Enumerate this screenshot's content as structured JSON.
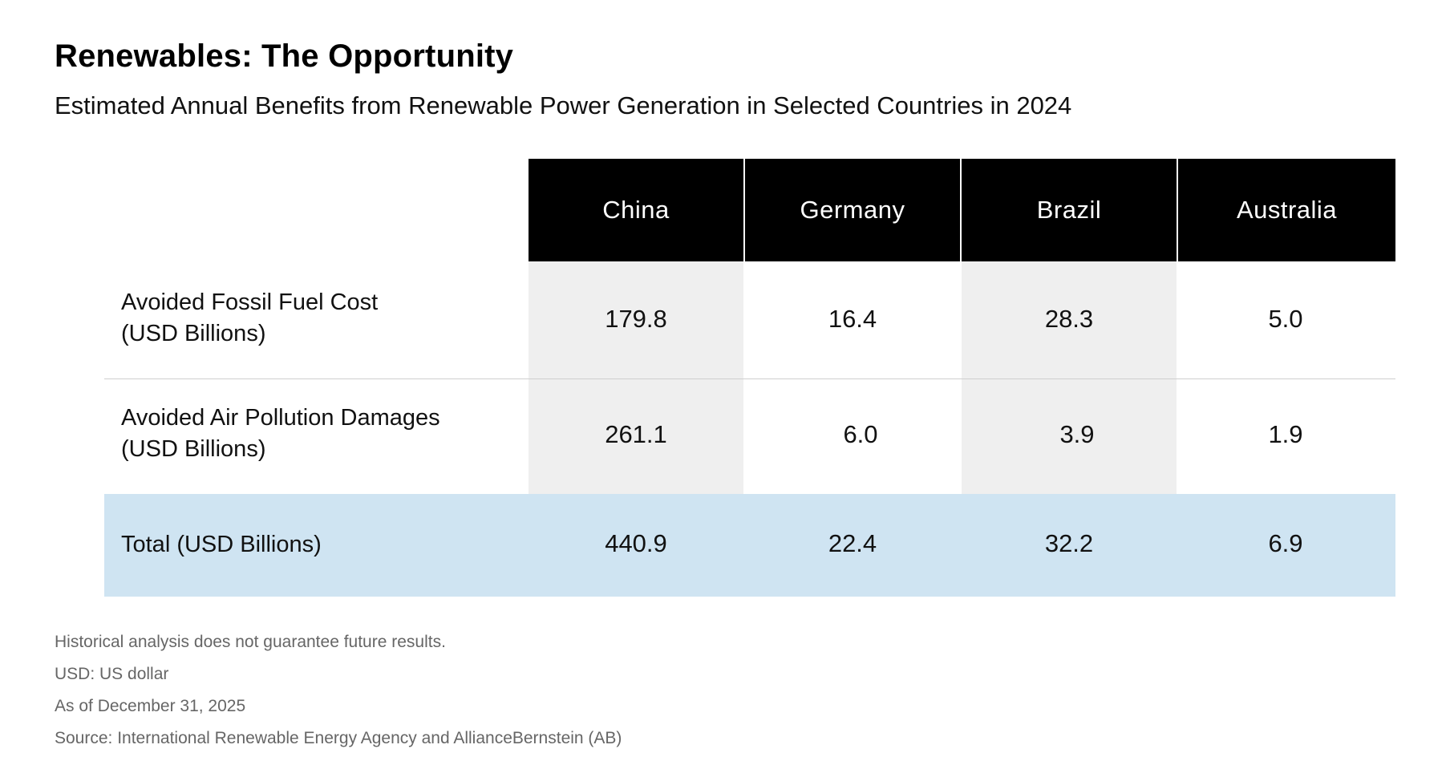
{
  "title": "Renewables: The Opportunity",
  "subtitle": "Estimated Annual Benefits from Renewable Power Generation in Selected Countries in 2024",
  "colors": {
    "header_bg": "#000000",
    "header_text": "#ffffff",
    "shaded_column": "#efefef",
    "total_row": "#cfe4f2",
    "notes_text": "#666666"
  },
  "chart_data": {
    "type": "table",
    "title": "Renewables: The Opportunity",
    "subtitle": "Estimated Annual Benefits from Renewable Power Generation in Selected Countries in 2024",
    "columns": [
      "China",
      "Germany",
      "Brazil",
      "Australia"
    ],
    "rows": [
      {
        "label_line1": "Avoided Fossil Fuel Cost",
        "label_line2": "(USD Billions)",
        "values": [
          "179.8",
          "16.4",
          "28.3",
          "5.0"
        ]
      },
      {
        "label_line1": "Avoided Air Pollution Damages",
        "label_line2": "(USD Billions)",
        "values": [
          "261.1",
          "6.0",
          "3.9",
          "1.9"
        ]
      },
      {
        "label_line1": "Total (USD Billions)",
        "label_line2": "",
        "values": [
          "440.9",
          "22.4",
          "32.2",
          "6.9"
        ]
      }
    ]
  },
  "notes": [
    "Historical analysis does not guarantee future results.",
    "USD: US dollar",
    "As of December 31, 2025",
    "Source: International Renewable Energy Agency and AllianceBernstein (AB)"
  ]
}
